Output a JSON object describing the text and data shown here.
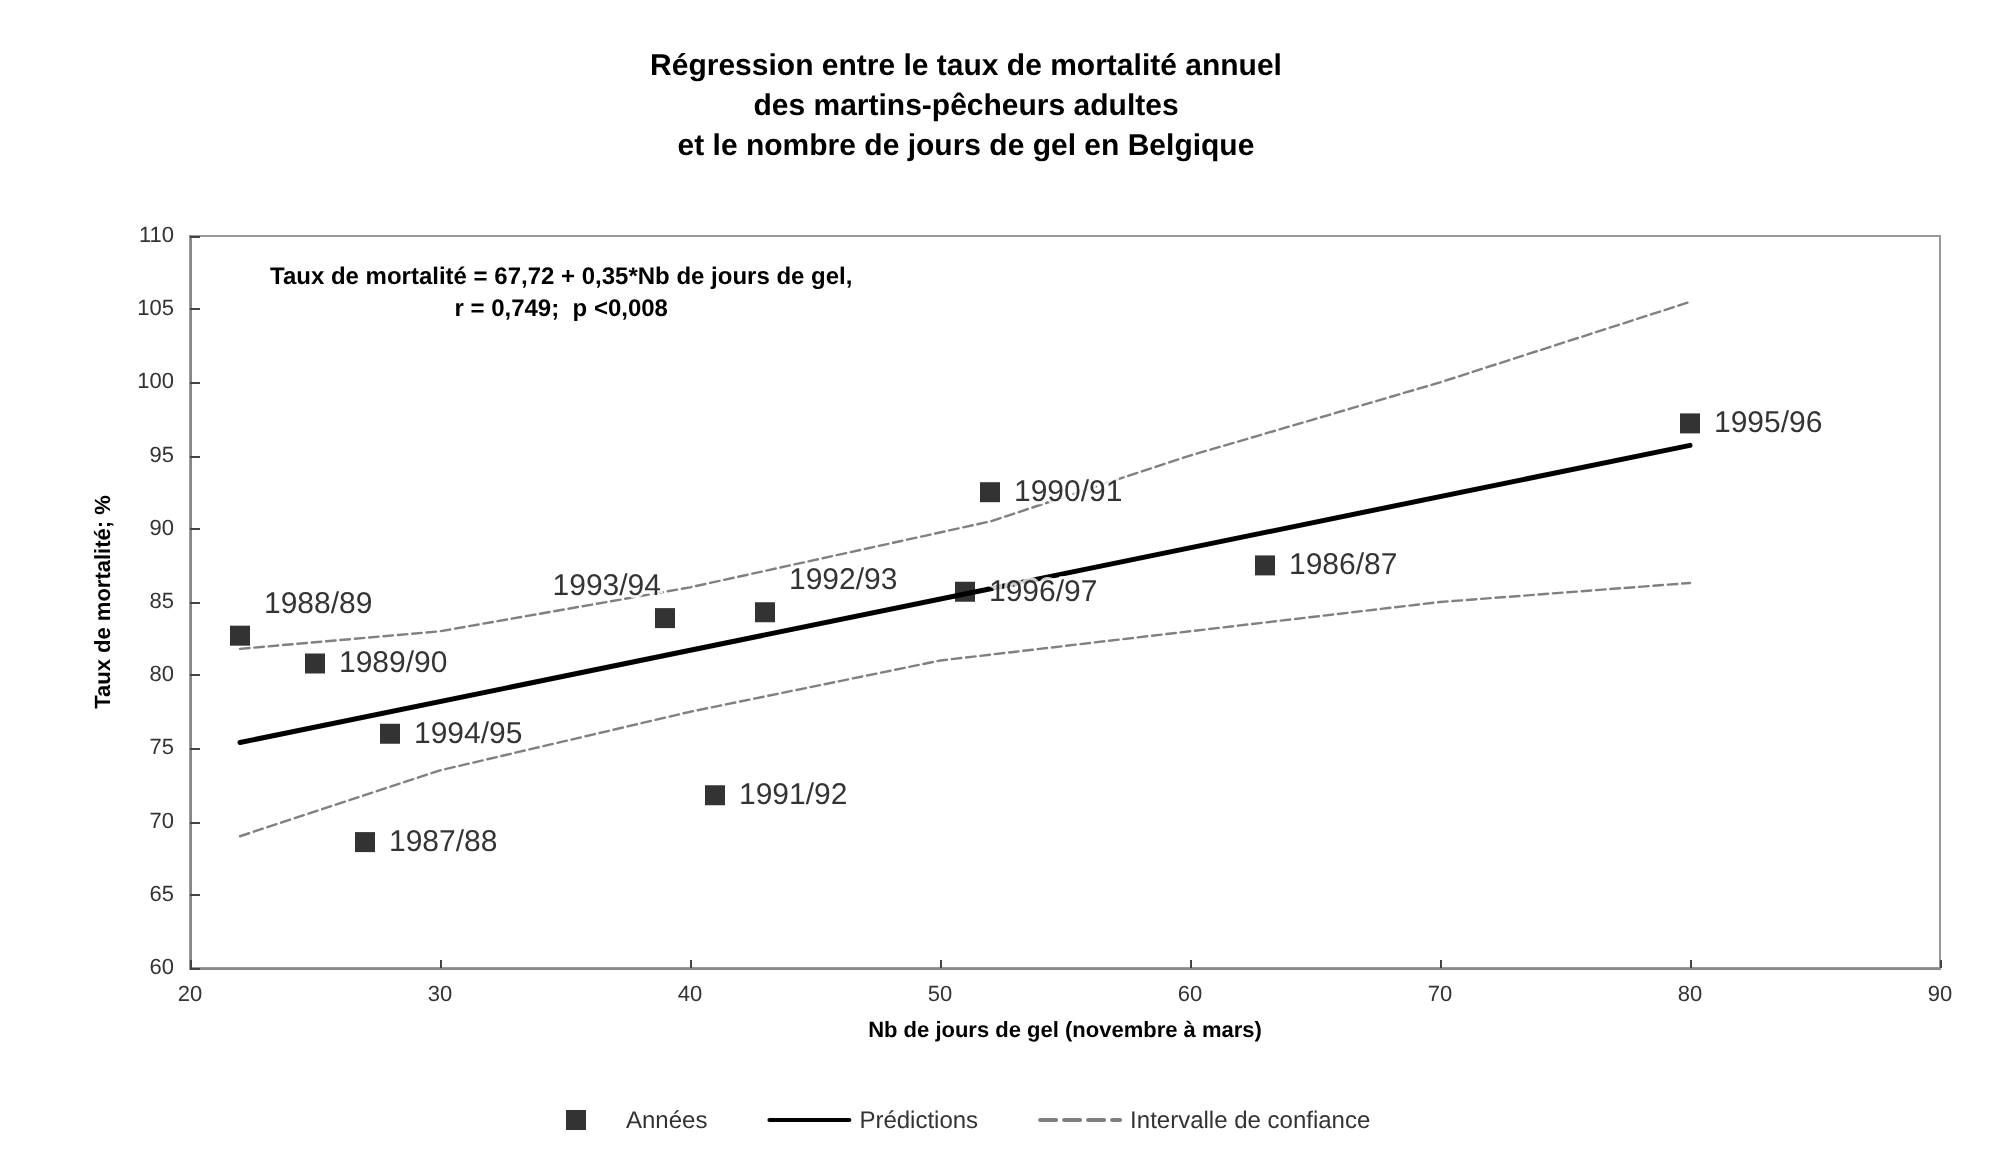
{
  "chart_data": {
    "type": "scatter",
    "title": "Régression entre le taux de mortalité annuel\ndes martins-pêcheurs adultes\net le nombre de jours de gel en Belgique",
    "xlabel": "Nb de jours de gel (novembre à mars)",
    "ylabel": "Taux de mortalité; %",
    "xlim": [
      20,
      90
    ],
    "xticks": [
      20,
      30,
      40,
      50,
      60,
      70,
      80,
      90
    ],
    "ylim": [
      60,
      110
    ],
    "yticks": [
      60,
      65,
      70,
      75,
      80,
      85,
      90,
      95,
      100,
      105,
      110
    ],
    "grid": false,
    "legend": "bottom",
    "series": [
      {
        "name": "Années",
        "marker": "square",
        "color": "#000000",
        "x": [
          22,
          25,
          28,
          27,
          39,
          41,
          43,
          51,
          52,
          63,
          80
        ],
        "values": [
          82.7,
          80.8,
          76,
          68.6,
          83.9,
          71.8,
          84.3,
          85.7,
          92.5,
          87.5,
          97.2
        ]
      },
      {
        "name": "Prédictions",
        "type": "line",
        "line_style": "solid",
        "color": "#000000",
        "x": [
          22,
          80
        ],
        "values": [
          75.4,
          95.7
        ]
      },
      {
        "name": "Intervalle de confiance",
        "type": "line",
        "line_style": "dashed",
        "color": "#808080",
        "x": [
          22,
          30,
          40,
          52,
          60,
          70,
          80,
          null,
          22,
          30,
          40,
          50,
          60,
          70,
          80
        ],
        "values": [
          81.8,
          83,
          86,
          90.5,
          95,
          100,
          105.5,
          null,
          69,
          73.5,
          77.5,
          81,
          83,
          85,
          86.3
        ]
      }
    ],
    "annotations": [
      "Taux de mortalité = 67,72 + 0,35*Nb de jours de gel,\nr = 0,749;  p <0,008",
      {
        "text": "1988/89",
        "x": 22,
        "y": 82.7
      },
      {
        "text": "1989/90",
        "x": 25,
        "y": 80.8
      },
      {
        "text": "1994/95",
        "x": 28,
        "y": 76
      },
      {
        "text": "1987/88",
        "x": 27,
        "y": 68.6
      },
      {
        "text": "1993/94",
        "x": 39,
        "y": 83.9
      },
      {
        "text": "1991/92",
        "x": 41,
        "y": 71.8
      },
      {
        "text": "1992/93",
        "x": 43,
        "y": 84.3
      },
      {
        "text": "1996/97",
        "x": 51,
        "y": 85.7
      },
      {
        "text": "1990/91",
        "x": 52,
        "y": 92.5
      },
      {
        "text": "1986/87",
        "x": 63,
        "y": 87.5
      },
      {
        "text": "1995/96",
        "x": 80,
        "y": 97.2
      }
    ]
  }
}
